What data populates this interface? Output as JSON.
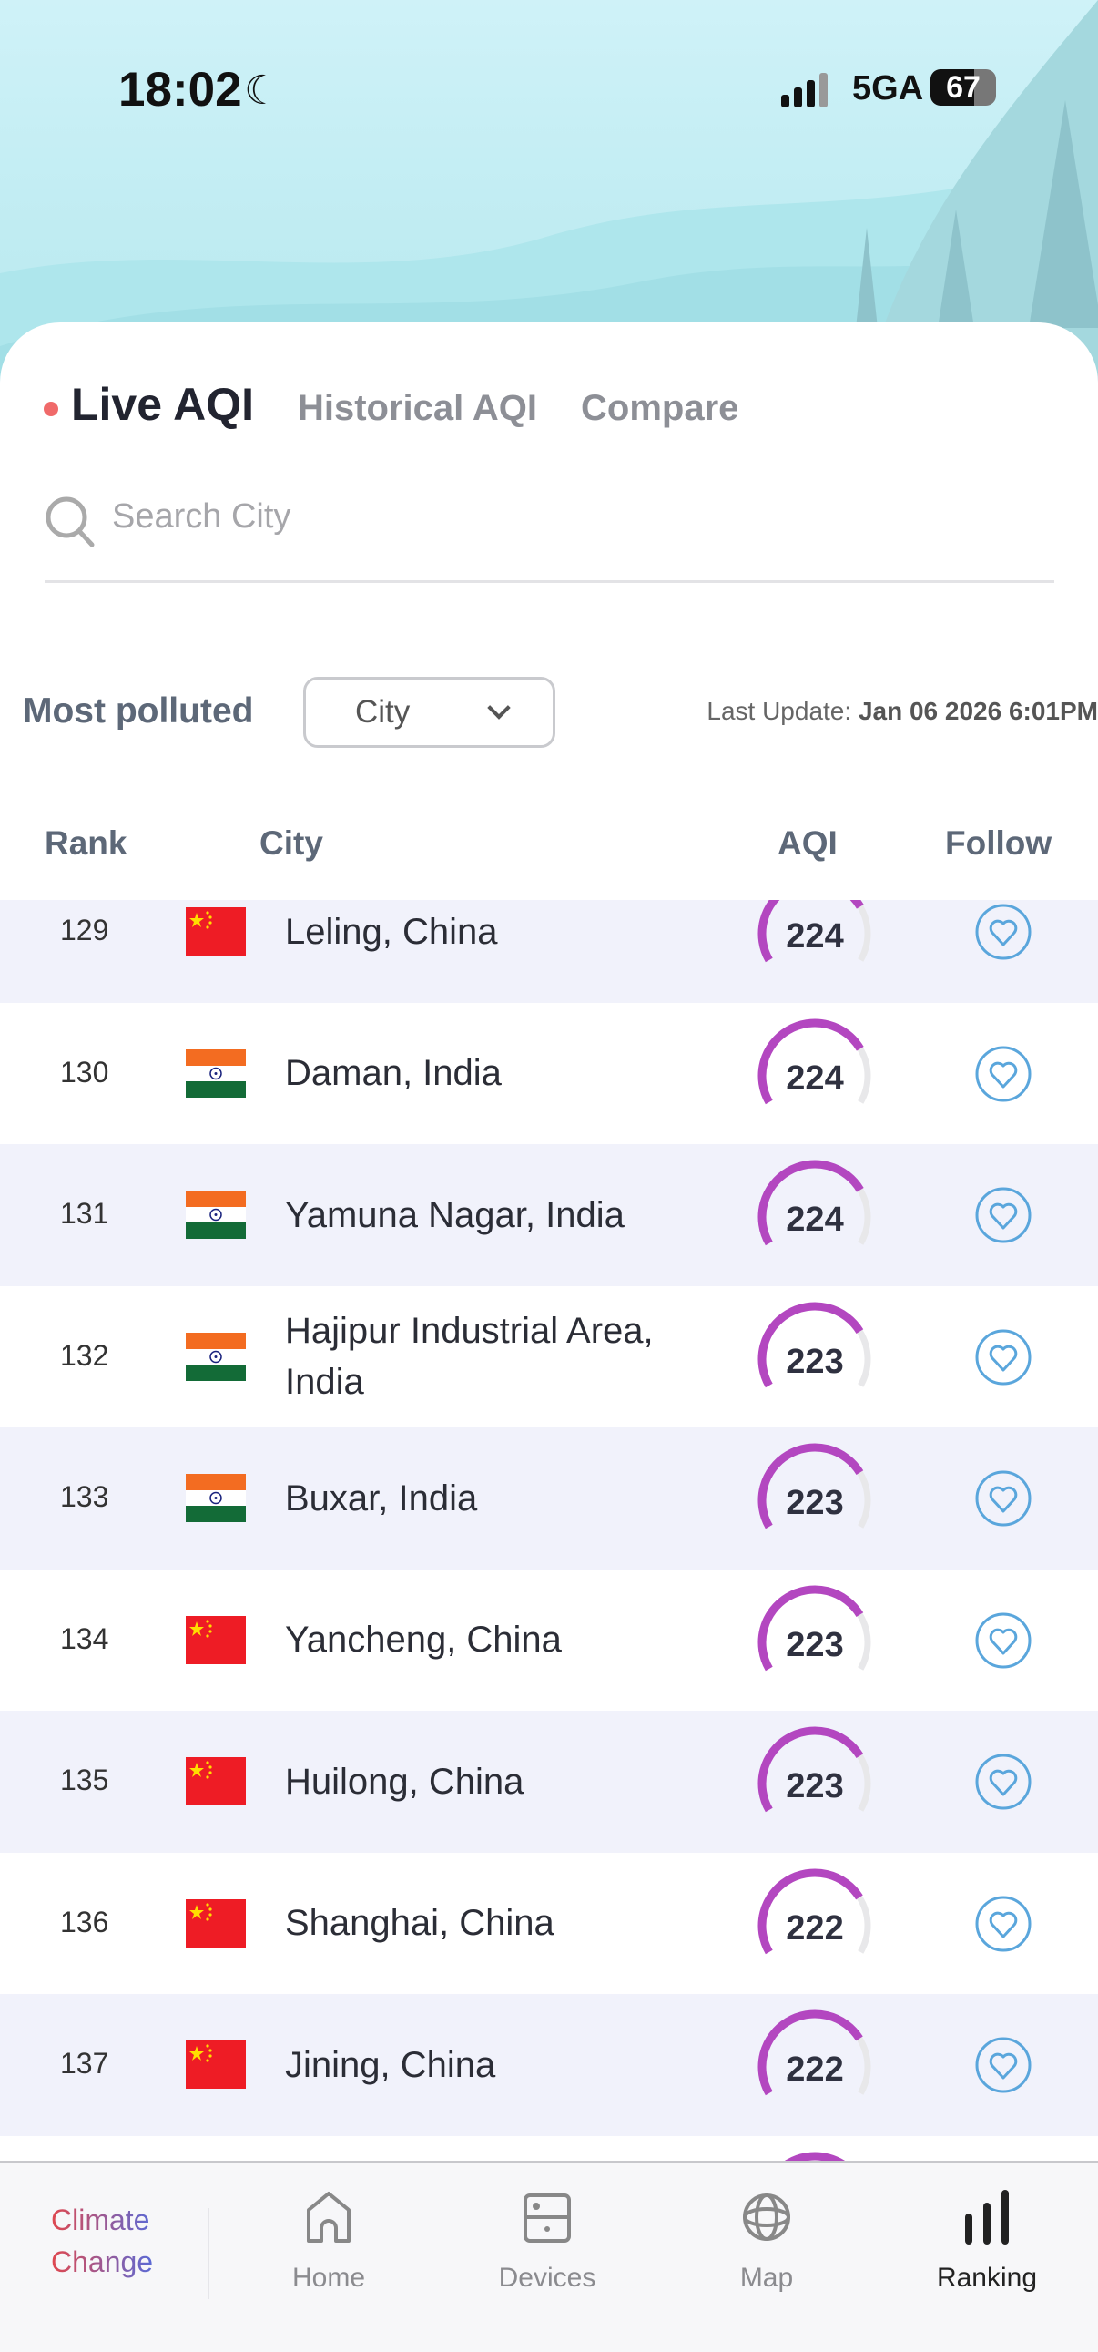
{
  "status_bar": {
    "time": "18:02",
    "network": "5GA",
    "battery": "67",
    "icons": [
      "moon-icon",
      "signal-icon"
    ]
  },
  "tabs": [
    {
      "label": "Live AQI",
      "active": true
    },
    {
      "label": "Historical AQI"
    },
    {
      "label": "Compare"
    }
  ],
  "search": {
    "placeholder": "Search City",
    "icon": "search-icon"
  },
  "filter": {
    "label": "Most polluted",
    "dropdown_value": "City",
    "last_update_label": "Last Update:",
    "last_update_value": "Jan 06 2026 6:01PM"
  },
  "table": {
    "headers": {
      "rank": "Rank",
      "city": "City",
      "aqi": "AQI",
      "follow": "Follow"
    },
    "rows": [
      {
        "rank": "129",
        "city": "Leling, China",
        "country": "china",
        "aqi": "224"
      },
      {
        "rank": "130",
        "city": "Daman, India",
        "country": "india",
        "aqi": "224"
      },
      {
        "rank": "131",
        "city": "Yamuna Nagar, India",
        "country": "india",
        "aqi": "224"
      },
      {
        "rank": "132",
        "city": "Hajipur Industrial Area, India",
        "country": "india",
        "aqi": "223"
      },
      {
        "rank": "133",
        "city": "Buxar, India",
        "country": "india",
        "aqi": "223"
      },
      {
        "rank": "134",
        "city": "Yancheng, China",
        "country": "china",
        "aqi": "223"
      },
      {
        "rank": "135",
        "city": "Huilong, China",
        "country": "china",
        "aqi": "223"
      },
      {
        "rank": "136",
        "city": "Shanghai, China",
        "country": "china",
        "aqi": "222"
      },
      {
        "rank": "137",
        "city": "Jining, China",
        "country": "china",
        "aqi": "222"
      }
    ]
  },
  "colors": {
    "gauge": "#b347c0",
    "gauge_track": "#e8e8ea",
    "heart": "#5aa6dc",
    "row_alt": "#f1f2fb",
    "live_dot": "#f06a6a"
  },
  "nav": {
    "brand_line1": "Climate",
    "brand_line2": "Change",
    "items": [
      {
        "label": "Home",
        "icon": "home-icon"
      },
      {
        "label": "Devices",
        "icon": "devices-icon"
      },
      {
        "label": "Map",
        "icon": "globe-icon"
      },
      {
        "label": "Ranking",
        "icon": "ranking-icon",
        "active": true
      }
    ]
  }
}
